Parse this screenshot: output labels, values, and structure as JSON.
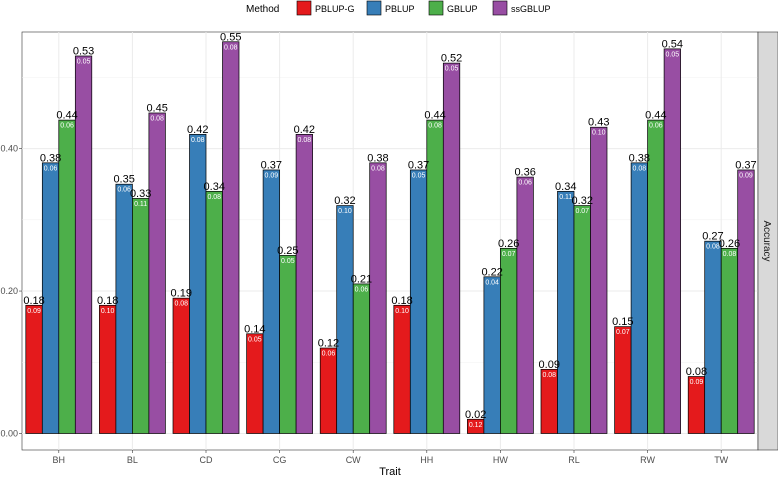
{
  "chart_data": {
    "type": "bar",
    "x_axis_title": "Trait",
    "strip_label": "Accuracy",
    "legend_title": "Method",
    "ylim": [
      0,
      0.58
    ],
    "yticks": [
      0.0,
      0.2,
      0.4
    ],
    "ytick_labels": [
      "0.00",
      "0.20",
      "0.40"
    ],
    "categories": [
      "BH",
      "BL",
      "CD",
      "CG",
      "CW",
      "HH",
      "HW",
      "RL",
      "RW",
      "TW"
    ],
    "series": [
      {
        "name": "PBLUP-G",
        "color": "#e41a1c",
        "values": [
          0.18,
          0.18,
          0.19,
          0.14,
          0.12,
          0.18,
          0.02,
          0.09,
          0.15,
          0.08
        ],
        "labels": [
          "0.18",
          "0.18",
          "0.19",
          "0.14",
          "0.12",
          "0.18",
          "0.02",
          "0.09",
          "0.15",
          "0.08"
        ],
        "se": [
          "0.09",
          "0.10",
          "0.08",
          "0.05",
          "0.06",
          "0.10",
          "0.12",
          "0.08",
          "0.07",
          "0.09"
        ]
      },
      {
        "name": "PBLUP",
        "color": "#377eb8",
        "values": [
          0.38,
          0.35,
          0.42,
          0.37,
          0.32,
          0.37,
          0.22,
          0.34,
          0.38,
          0.27
        ],
        "labels": [
          "0.38",
          "0.35",
          "0.42",
          "0.37",
          "0.32",
          "0.37",
          "0.22",
          "0.34",
          "0.38",
          "0.27"
        ],
        "se": [
          "0.06",
          "0.06",
          "0.08",
          "0.09",
          "0.10",
          "0.05",
          "0.04",
          "0.11",
          "0.08",
          "0.08"
        ]
      },
      {
        "name": "GBLUP",
        "color": "#4daf4a",
        "values": [
          0.44,
          0.33,
          0.34,
          0.25,
          0.21,
          0.44,
          0.26,
          0.32,
          0.44,
          0.26
        ],
        "labels": [
          "0.44",
          "0.33",
          "0.34",
          "0.25",
          "0.21",
          "0.44",
          "0.26",
          "0.32",
          "0.44",
          "0.26"
        ],
        "se": [
          "0.06",
          "0.11",
          "0.08",
          "0.05",
          "0.06",
          "0.08",
          "0.07",
          "0.07",
          "0.06",
          "0.08"
        ]
      },
      {
        "name": "ssGBLUP",
        "color": "#984ea3",
        "values": [
          0.53,
          0.45,
          0.55,
          0.42,
          0.38,
          0.52,
          0.36,
          0.43,
          0.54,
          0.37
        ],
        "labels": [
          "0.53",
          "0.45",
          "0.55",
          "0.42",
          "0.38",
          "0.52",
          "0.36",
          "0.43",
          "0.54",
          "0.37"
        ],
        "se": [
          "0.05",
          "0.08",
          "0.08",
          "0.08",
          "0.08",
          "0.05",
          "0.06",
          "0.10",
          "0.05",
          "0.09"
        ]
      }
    ]
  }
}
